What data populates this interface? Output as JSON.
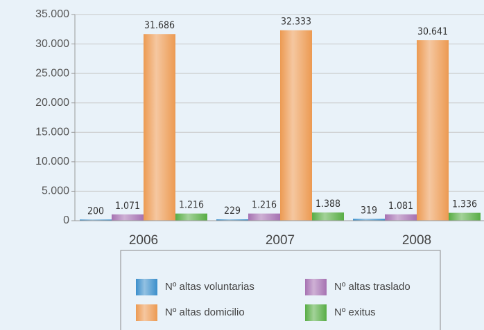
{
  "chart_data": {
    "type": "bar",
    "categories": [
      "2006",
      "2007",
      "2008"
    ],
    "series": [
      {
        "name": "Nº altas voluntarias",
        "color": "#3b8fcb",
        "values": [
          200,
          229,
          319
        ],
        "value_labels": [
          "200",
          "229",
          "319"
        ]
      },
      {
        "name": "Nº altas traslado",
        "color": "#a672b2",
        "values": [
          1071,
          1216,
          1081
        ],
        "value_labels": [
          "1.071",
          "1.216",
          "1.081"
        ]
      },
      {
        "name": "Nº altas domicilio",
        "color": "#ec9a52",
        "values": [
          31686,
          32333,
          30641
        ],
        "value_labels": [
          "31.686",
          "32.333",
          "30.641"
        ]
      },
      {
        "name": "Nº exitus",
        "color": "#58ad45",
        "values": [
          1216,
          1388,
          1336
        ],
        "value_labels": [
          "1.216",
          "1.388",
          "1.336"
        ]
      }
    ],
    "ylim": [
      0,
      35000
    ],
    "yticks": [
      0,
      {
        "value": 5000,
        "label": "5.000"
      },
      {
        "value": 10000,
        "label": "10.000"
      },
      {
        "value": 15000,
        "label": "15.000"
      },
      {
        "value": 20000,
        "label": "20.000"
      },
      {
        "value": 25000,
        "label": "25.000"
      },
      {
        "value": 30000,
        "label": "30.000"
      },
      {
        "value": 35000,
        "label": "35.000"
      }
    ],
    "grid": true
  }
}
